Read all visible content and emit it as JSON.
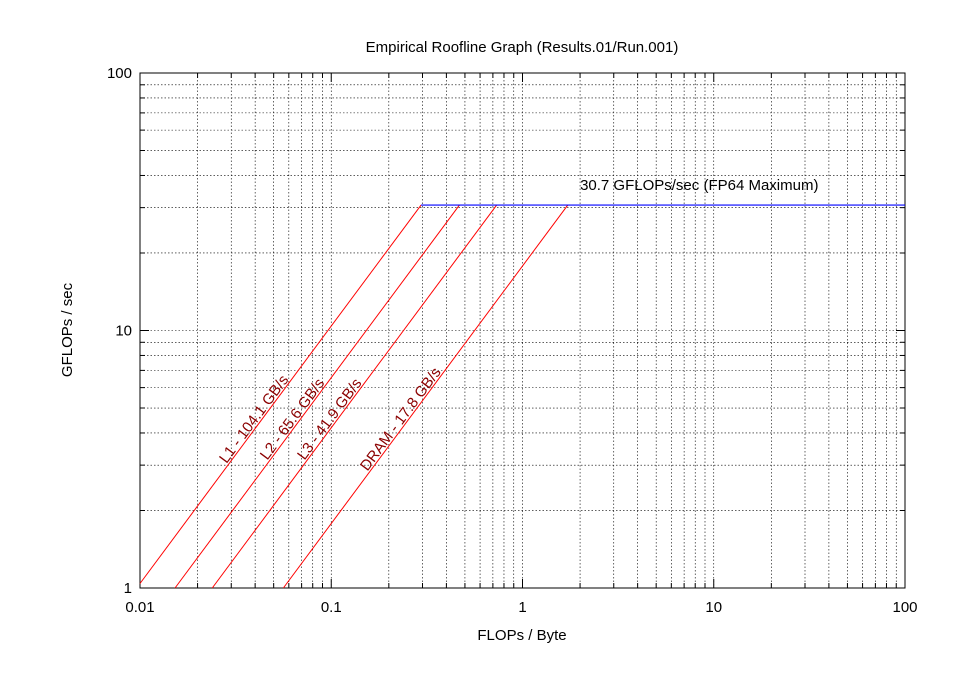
{
  "chart_data": {
    "type": "line",
    "title": "Empirical Roofline Graph (Results.01/Run.001)",
    "xlabel": "FLOPs / Byte",
    "ylabel": "GFLOPs / sec",
    "x_scale": "log",
    "y_scale": "log",
    "xlim": [
      0.01,
      100
    ],
    "ylim": [
      1,
      100
    ],
    "x_ticks": [
      0.01,
      0.1,
      1,
      10,
      100
    ],
    "x_tick_labels": [
      "0.01",
      "0.1",
      "1",
      "10",
      "100"
    ],
    "y_ticks": [
      1,
      10,
      100
    ],
    "y_tick_labels": [
      "1",
      "10",
      "100"
    ],
    "grid": true,
    "roof": {
      "label": "30.7 GFLOPs/sec (FP64 Maximum)",
      "gflops": 30.7,
      "color": "#0000ff",
      "label_color": "#00008b"
    },
    "bandwidth_series": [
      {
        "label": "L1 - 104.1 GB/s",
        "gbps": 104.1
      },
      {
        "label": "L2 - 65.6 GB/s",
        "gbps": 65.6
      },
      {
        "label": "L3 - 41.9 GB/s",
        "gbps": 41.9
      },
      {
        "label": "DRAM - 17.8 GB/s",
        "gbps": 17.8
      }
    ],
    "bandwidth_color": "#ff0000",
    "bandwidth_label_color": "#8b0000"
  }
}
